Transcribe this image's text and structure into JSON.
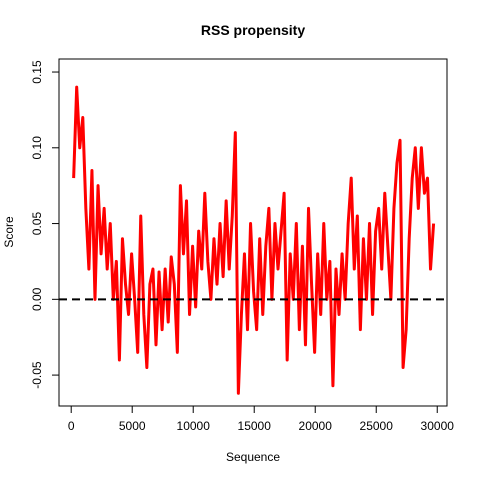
{
  "chart_data": {
    "type": "line",
    "title": "RSS propensity",
    "x_label": "Sequence",
    "y_label": "Score",
    "x": [
      200,
      450,
      700,
      950,
      1200,
      1450,
      1700,
      1950,
      2200,
      2450,
      2700,
      2950,
      3200,
      3450,
      3700,
      3950,
      4200,
      4450,
      4700,
      4950,
      5200,
      5450,
      5700,
      5950,
      6200,
      6450,
      6700,
      6950,
      7200,
      7450,
      7700,
      7950,
      8200,
      8450,
      8700,
      8950,
      9200,
      9450,
      9700,
      9950,
      10200,
      10450,
      10700,
      10950,
      11200,
      11450,
      11700,
      11950,
      12200,
      12450,
      12700,
      12950,
      13200,
      13450,
      13700,
      13950,
      14200,
      14450,
      14700,
      14950,
      15200,
      15450,
      15700,
      15950,
      16200,
      16450,
      16700,
      16950,
      17200,
      17450,
      17700,
      17950,
      18200,
      18450,
      18700,
      18950,
      19200,
      19450,
      19700,
      19950,
      20200,
      20450,
      20700,
      20950,
      21200,
      21450,
      21700,
      21950,
      22200,
      22450,
      22700,
      22950,
      23200,
      23450,
      23700,
      23950,
      24200,
      24450,
      24700,
      24950,
      25200,
      25450,
      25700,
      25950,
      26200,
      26450,
      26700,
      26950,
      27200,
      27450,
      27700,
      27950,
      28200,
      28450,
      28700,
      28950,
      29200,
      29450,
      29700
    ],
    "series": [
      {
        "name": "Score",
        "color": "#ff0000",
        "values": [
          0.08,
          0.14,
          0.1,
          0.12,
          0.06,
          0.02,
          0.085,
          0.0,
          0.075,
          0.03,
          0.06,
          0.02,
          0.05,
          0.0,
          0.025,
          -0.04,
          0.04,
          0.01,
          -0.01,
          0.03,
          0.0,
          -0.035,
          0.055,
          -0.01,
          -0.045,
          0.01,
          0.02,
          -0.03,
          0.018,
          -0.02,
          0.02,
          -0.015,
          0.028,
          0.01,
          -0.035,
          0.075,
          0.03,
          0.065,
          -0.01,
          0.035,
          -0.005,
          0.045,
          0.02,
          0.07,
          0.025,
          0.0,
          0.04,
          0.01,
          0.05,
          0.015,
          0.065,
          0.02,
          0.055,
          0.11,
          -0.062,
          -0.01,
          0.03,
          -0.02,
          0.05,
          0.005,
          -0.02,
          0.04,
          -0.01,
          0.035,
          0.06,
          0.0,
          0.05,
          0.02,
          0.045,
          0.07,
          -0.04,
          0.03,
          0.0,
          0.05,
          -0.02,
          0.035,
          -0.03,
          0.06,
          0.01,
          -0.035,
          0.03,
          -0.01,
          0.05,
          0.0,
          0.025,
          -0.057,
          0.02,
          -0.01,
          0.03,
          0.0,
          0.05,
          0.08,
          0.02,
          0.055,
          -0.02,
          0.04,
          0.0,
          0.05,
          -0.01,
          0.045,
          0.06,
          0.02,
          0.07,
          0.035,
          0.0,
          0.06,
          0.09,
          0.105,
          -0.045,
          -0.02,
          0.04,
          0.08,
          0.1,
          0.06,
          0.1,
          0.07,
          0.08,
          0.02,
          0.05
        ]
      }
    ],
    "reference_line": 0,
    "xlim": [
      -1000,
      30800
    ],
    "ylim": [
      -0.0704,
      0.1586
    ],
    "xticks": [
      0,
      5000,
      10000,
      15000,
      20000,
      25000,
      30000
    ],
    "yticks": [
      -0.05,
      {
        "value": 0,
        "label": "0.00"
      },
      0.05,
      {
        "value": 0.1,
        "label": "0.10"
      },
      0.15
    ]
  }
}
